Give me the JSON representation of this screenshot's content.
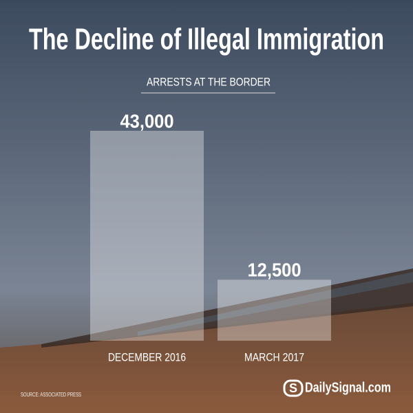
{
  "chart_data": {
    "type": "bar",
    "title": "The Decline of Illegal Immigration",
    "subtitle": "ARRESTS AT THE BORDER",
    "categories": [
      "DECEMBER 2016",
      "MARCH 2017"
    ],
    "values": [
      43000,
      12500
    ],
    "value_labels": [
      "43,000",
      "12,500"
    ],
    "color": "#ffffff",
    "source": "SOURCE: ASSOCIATED PRESS",
    "logo": "S",
    "brand": "DailySignal.com"
  }
}
